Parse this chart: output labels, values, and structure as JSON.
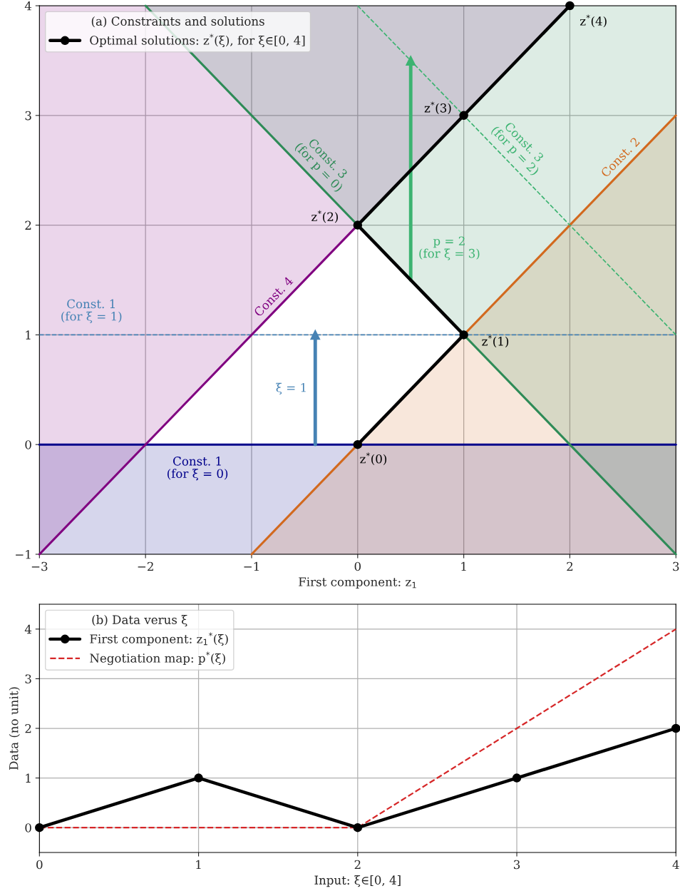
{
  "chart_data": [
    {
      "type": "line",
      "xlabel": "First component: z$_{1}$",
      "legend_title": "(a) Constraints and solutions",
      "legend": "top left",
      "grid": true,
      "xlim": [
        -3,
        3
      ],
      "ylim": [
        -1,
        4
      ],
      "xticks": [
        {
          "value": -3,
          "label": "−3"
        },
        {
          "value": -2,
          "label": "−2"
        },
        {
          "value": -1,
          "label": "−1"
        },
        0,
        1,
        2,
        3
      ],
      "yticks": [
        {
          "value": -1,
          "label": "−1"
        },
        0,
        1,
        2,
        3,
        4
      ],
      "series": [
        {
          "color": "#00008b",
          "x": [
            -3,
            3
          ],
          "values": [
            0,
            0
          ],
          "lower": [
            -1,
            -1
          ],
          "upper": [
            0,
            0
          ]
        },
        {
          "color": "#4682b4",
          "line_style": "dashed",
          "x": [
            -3,
            3
          ],
          "values": [
            1,
            1
          ]
        },
        {
          "color": "#800080",
          "x": [
            -3,
            0,
            2
          ],
          "values": [
            -1,
            2,
            null
          ],
          "lower": [
            -1,
            2,
            4
          ],
          "upper": [
            4,
            4,
            4
          ]
        },
        {
          "color": "#d2691e",
          "x": [
            -1,
            3
          ],
          "values": [
            -1,
            3
          ],
          "lower": [
            -1,
            -1
          ],
          "upper": [
            -1,
            3
          ]
        },
        {
          "color": "#2e8b57",
          "x": [
            -2,
            3
          ],
          "values": [
            4,
            -1
          ],
          "lower": [
            4,
            -1
          ],
          "upper": [
            4,
            4
          ]
        },
        {
          "color": "#3cb371",
          "line_style": "dashed",
          "x": [
            0,
            3
          ],
          "values": [
            4,
            1
          ]
        },
        {
          "color": "#4682b4",
          "marker": "triangle",
          "x": [
            -0.4,
            -0.4
          ],
          "values": [
            0,
            1
          ]
        },
        {
          "color": "#3cb371",
          "marker": "triangle",
          "x": [
            0.5,
            0.5
          ],
          "values": [
            1.5,
            3.5
          ]
        },
        {
          "name": "Optimal solutions: z$^{*}$(ξ), for ξ∈[0, 4]",
          "color": "#000000",
          "marker": "circle",
          "x": [
            0,
            1,
            0,
            1,
            2
          ],
          "values": [
            0,
            1,
            2,
            3,
            4
          ]
        }
      ],
      "annotations": [
        {
          "text": "z$^{*}$(0)",
          "x": 0,
          "y": 0
        },
        {
          "text": "z$^{*}$(1)",
          "x": 1,
          "y": 1
        },
        {
          "text": "z$^{*}$(2)",
          "x": 0,
          "y": 2
        },
        {
          "text": "z$^{*}$(3)",
          "x": 1,
          "y": 3
        },
        {
          "text": "z$^{*}$(4)",
          "x": 2,
          "y": 4
        },
        {
          "text": "Const. 1\n(for ξ = 1)",
          "x": -2.51,
          "y": 1
        },
        {
          "text": "Const. 1\n(for ξ = 0)",
          "x": -1.51,
          "y": 0
        },
        {
          "text": "Const. 4",
          "x": -0.72,
          "y": 1.28
        },
        {
          "text": "Const. 3\n(for p = 0)",
          "x": -0.45,
          "y": 2.45
        },
        {
          "text": "Const. 3\n(for p = 2)",
          "x": 1.4,
          "y": 2.6
        },
        {
          "text": "Const. 2",
          "x": 2.55,
          "y": 2.55
        },
        {
          "text": "ξ = 1",
          "x": -0.4,
          "y": 0.51
        },
        {
          "text": "p = 2\n(for ξ = 3)",
          "x": 0.5,
          "y": 1.79
        }
      ]
    },
    {
      "type": "line",
      "xlabel": "Input: ξ∈[0, 4]",
      "ylabel": "Data (no unit)",
      "legend_title": "(b) Data verus ξ",
      "legend": "top left",
      "grid": true,
      "xlim": [
        0,
        4
      ],
      "ylim": [
        -0.5,
        4.5
      ],
      "xticks": [
        0,
        1,
        2,
        3,
        4
      ],
      "yticks": [
        0,
        1,
        2,
        3,
        4
      ],
      "series": [
        {
          "name": "Negotiation map: p$^{*}$(ξ)",
          "color": "#d62728",
          "line_style": "dashed",
          "x": [
            0,
            1,
            2,
            3,
            4
          ],
          "values": [
            0,
            0,
            0,
            2,
            4
          ]
        },
        {
          "name": "First component: z$_{1}$$^{*}$(ξ)",
          "color": "#000000",
          "marker": "circle",
          "x": [
            0,
            1,
            2,
            3,
            4
          ],
          "values": [
            0,
            1,
            0,
            1,
            2
          ]
        }
      ]
    }
  ]
}
